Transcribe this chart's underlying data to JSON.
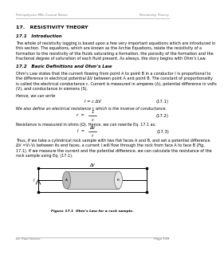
{
  "header_left": "Petrophysics MSc Course Notes",
  "header_right": "Resistivity Theory",
  "footer_left": "Dr. Paul Glover",
  "footer_right": "Page 199",
  "chapter_title": "17.   RESISTIVITY THEORY",
  "section1_title": "17.1   Introduction",
  "section1_text": "The whole of resistivity logging is based upon a few very important equations which are introduced in\nthis section. The equations, which are known as the Archie Equations, relate the resistivity of a\nformation to the resistivity of the fluids saturating a formation, the porosity of the formation and the\nfractional degree of saturation of each fluid present. As always, the story begins with Ohm’s Law.",
  "section2_title": "17.2   Basic Definitions and Ohm’s Law",
  "section2_text1": "Ohm’s Law states that the current flowing from point A to point B in a conductor I is proportional to\nthe difference in electrical potential ΔV between point A and point B. The constant of proportionality\nis called the electrical conductance c. Current is measured in amperes (A), potential difference in volts\n(V), and conductance in siemens (S).",
  "hence_text": "Hence, we can write",
  "eq1": "I = c ΔV",
  "eq1_label": "(17.1)",
  "eq2_intro": "We also define an electrical resistance r, which is the inverse of conductance.",
  "eq2_num": "1",
  "eq2_den": "c",
  "eq2_lhs": "r  =",
  "eq2_label": "(17.2)",
  "eq3_intro": "Resistance is measured in ohms (Ω). Hence, we can rewrite Eq. 17.1 as:",
  "eq3_num": "ΔV",
  "eq3_den": "r",
  "eq3_lhs": "I  =",
  "eq3_label": "(17.3)",
  "section2_text2": "Thus, if we take a cylindrical rock sample with two flat faces A and B, and set a potential difference\nΔV =V₁-V₂ between its end faces, a current I will flow through the rock from face A to face B (Fig.\n17.1). If we measure the current and the potential difference, we can calculate the resistance of the\nrock sample using Eq. (17.1).",
  "figure_caption": "Figure 17.1  Ohm’s Law for a rock sample.",
  "bg_color": "#ffffff",
  "text_color": "#000000",
  "header_color": "#777777",
  "title_color": "#000000",
  "fs_header": 3.0,
  "fs_body": 3.5,
  "fs_section": 4.0,
  "fs_chapter": 4.5,
  "fs_eq": 3.8,
  "fs_caption": 3.2
}
